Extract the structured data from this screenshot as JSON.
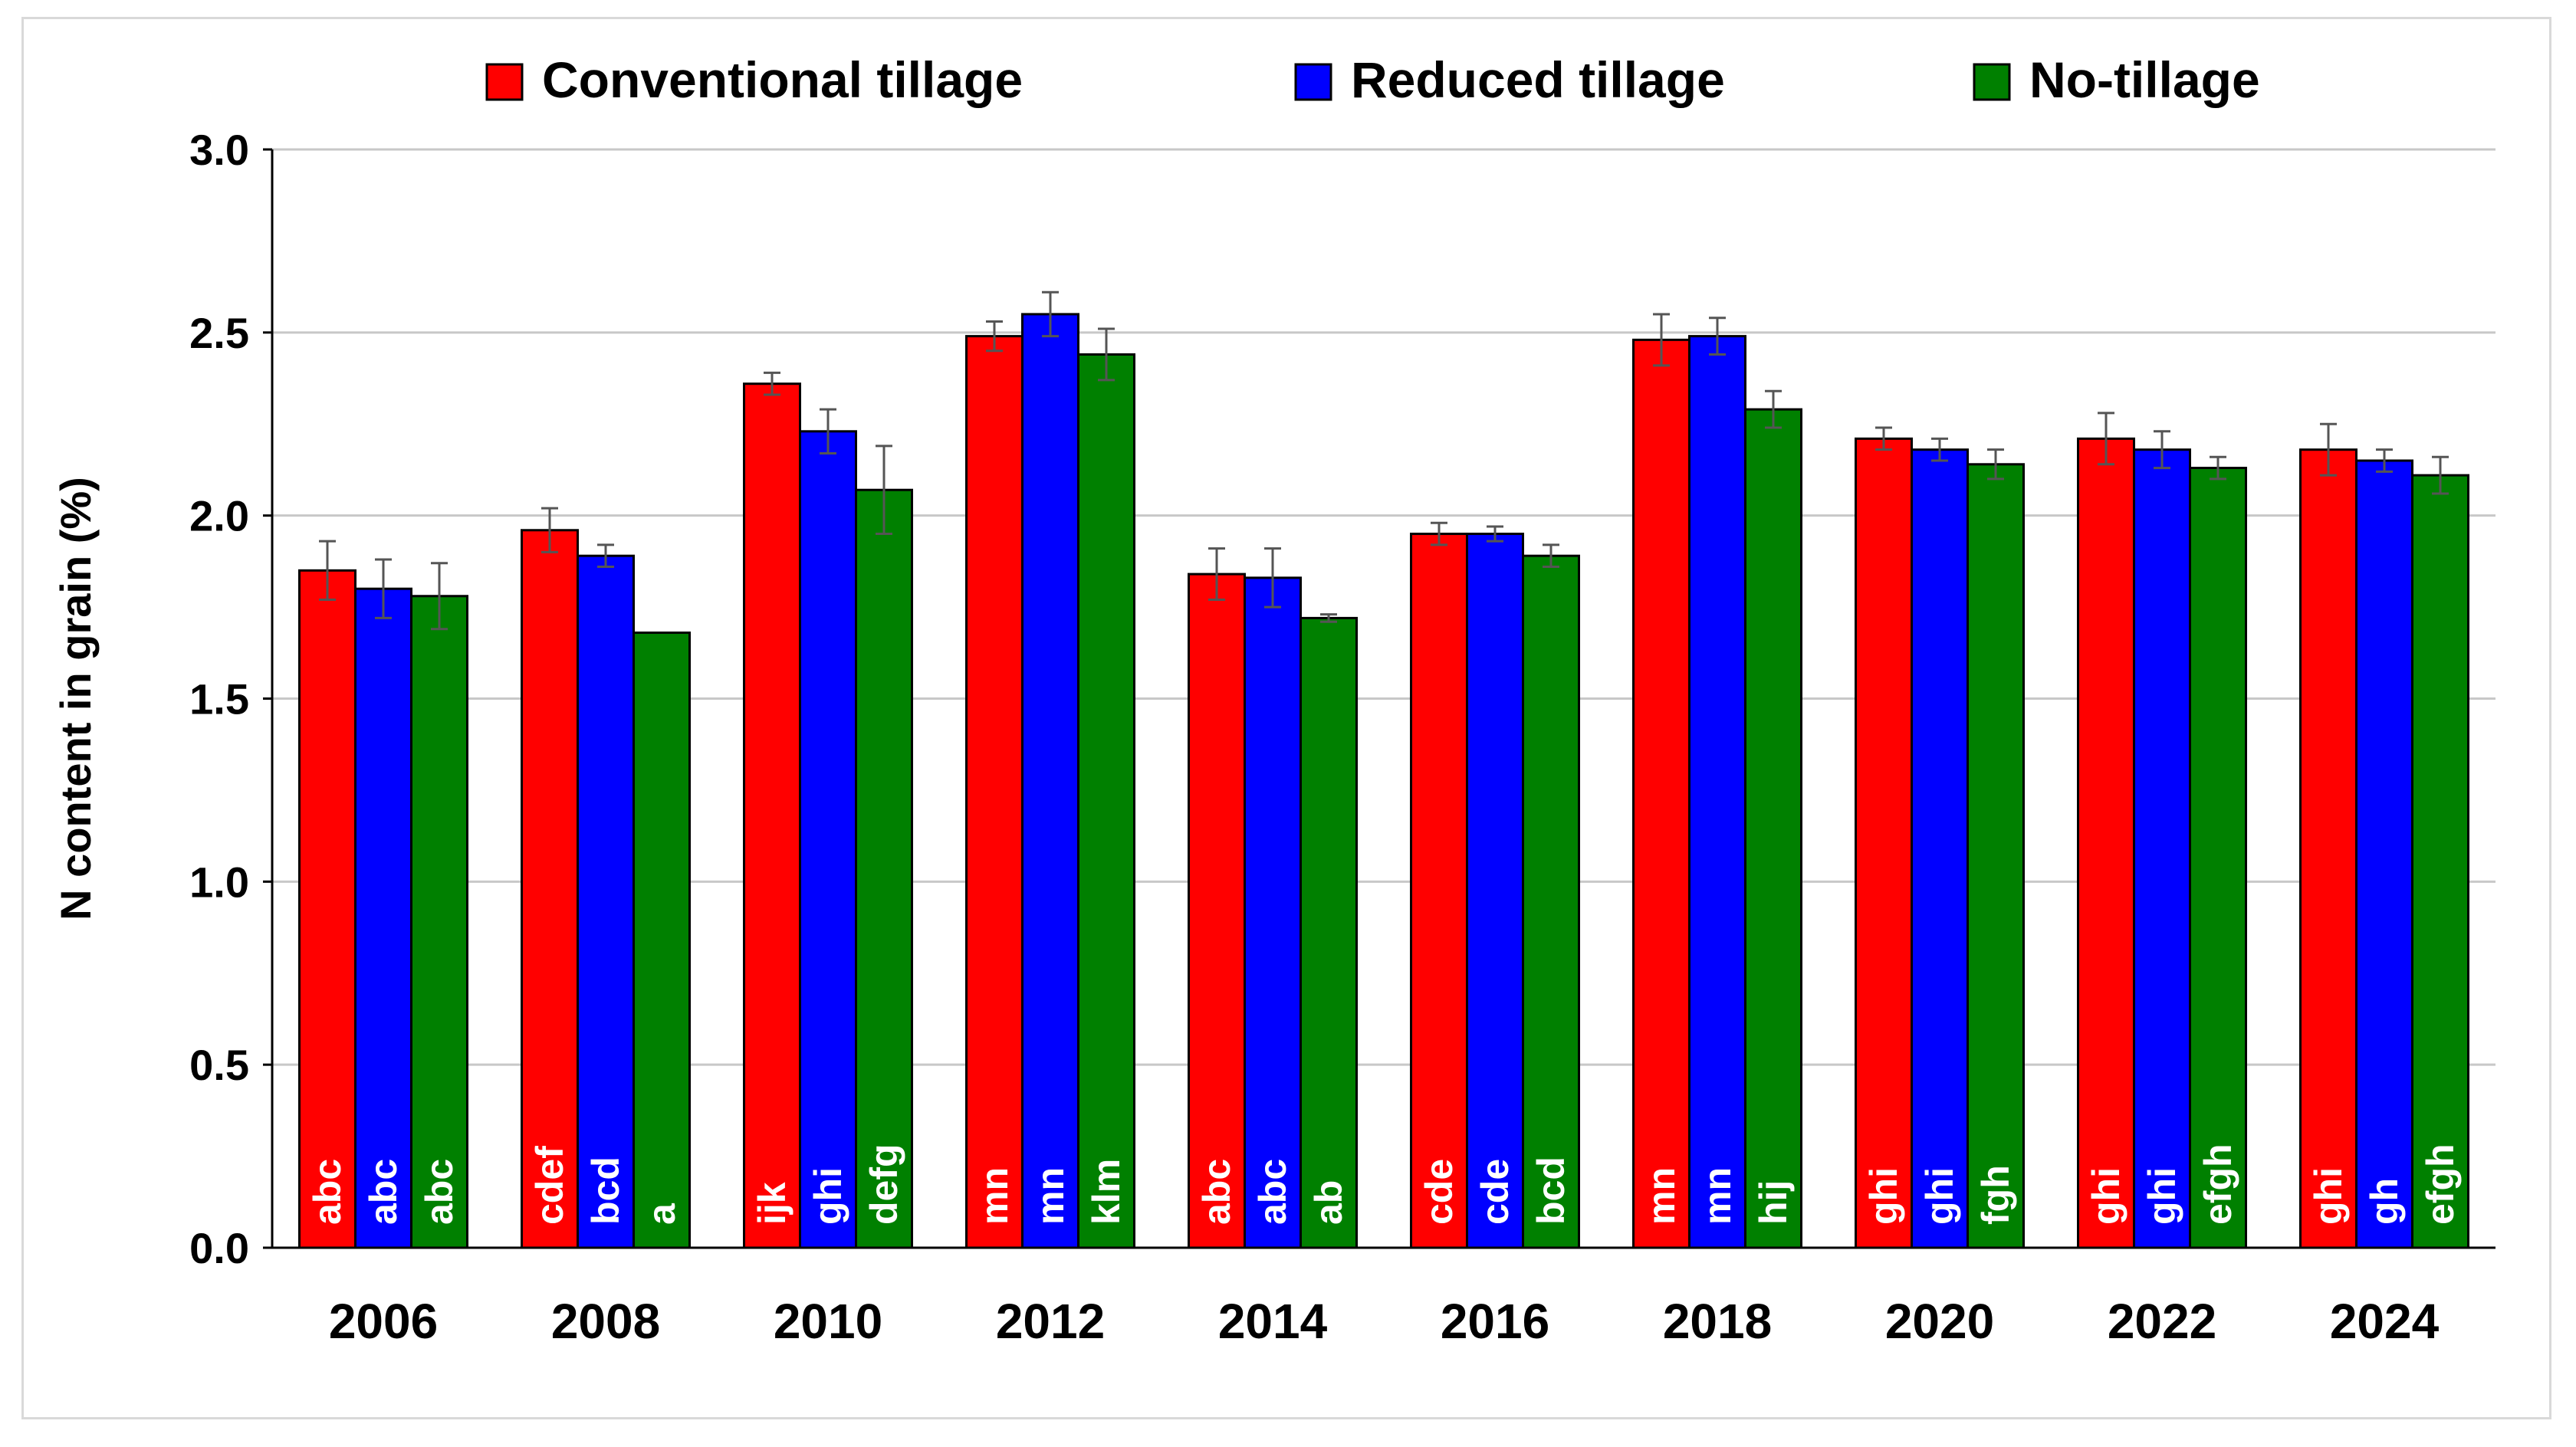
{
  "chart_data": {
    "type": "bar",
    "title": "",
    "xlabel": "",
    "ylabel": "N content in grain (%)",
    "ylim": [
      0,
      3.0
    ],
    "yticks": [
      "0.0",
      "0.5",
      "1.0",
      "1.5",
      "2.0",
      "2.5",
      "3.0"
    ],
    "ytick_values": [
      0,
      0.5,
      1.0,
      1.5,
      2.0,
      2.5,
      3.0
    ],
    "grid": true,
    "legend_position": "top",
    "categories": [
      "2006",
      "2008",
      "2010",
      "2012",
      "2014",
      "2016",
      "2018",
      "2020",
      "2022",
      "2024"
    ],
    "series": [
      {
        "name": "Conventional tillage",
        "color": "#ff0000",
        "values": [
          1.85,
          1.96,
          2.36,
          2.49,
          1.84,
          1.95,
          2.48,
          2.21,
          2.21,
          2.18
        ],
        "errors": [
          0.08,
          0.06,
          0.03,
          0.04,
          0.07,
          0.03,
          0.07,
          0.03,
          0.07,
          0.07
        ],
        "letters": [
          "abc",
          "cdef",
          "ijk",
          "mn",
          "abc",
          "cde",
          "mn",
          "ghi",
          "ghi",
          "ghi"
        ]
      },
      {
        "name": "Reduced tillage",
        "color": "#0000ff",
        "values": [
          1.8,
          1.89,
          2.23,
          2.55,
          1.83,
          1.95,
          2.49,
          2.18,
          2.18,
          2.15
        ],
        "errors": [
          0.08,
          0.03,
          0.06,
          0.06,
          0.08,
          0.02,
          0.05,
          0.03,
          0.05,
          0.03
        ],
        "letters": [
          "abc",
          "bcd",
          "ghi",
          "mn",
          "abc",
          "cde",
          "mn",
          "ghi",
          "ghi",
          "gh"
        ]
      },
      {
        "name": "No-tillage",
        "color": "#008000",
        "values": [
          1.78,
          1.68,
          2.07,
          2.44,
          1.72,
          1.89,
          2.29,
          2.14,
          2.13,
          2.11
        ],
        "errors": [
          0.09,
          0.0,
          0.12,
          0.07,
          0.01,
          0.03,
          0.05,
          0.04,
          0.03,
          0.05
        ],
        "letters": [
          "abc",
          "a",
          "defg",
          "klm",
          "ab",
          "bcd",
          "hij",
          "fgh",
          "efgh",
          "efgh"
        ]
      }
    ]
  }
}
